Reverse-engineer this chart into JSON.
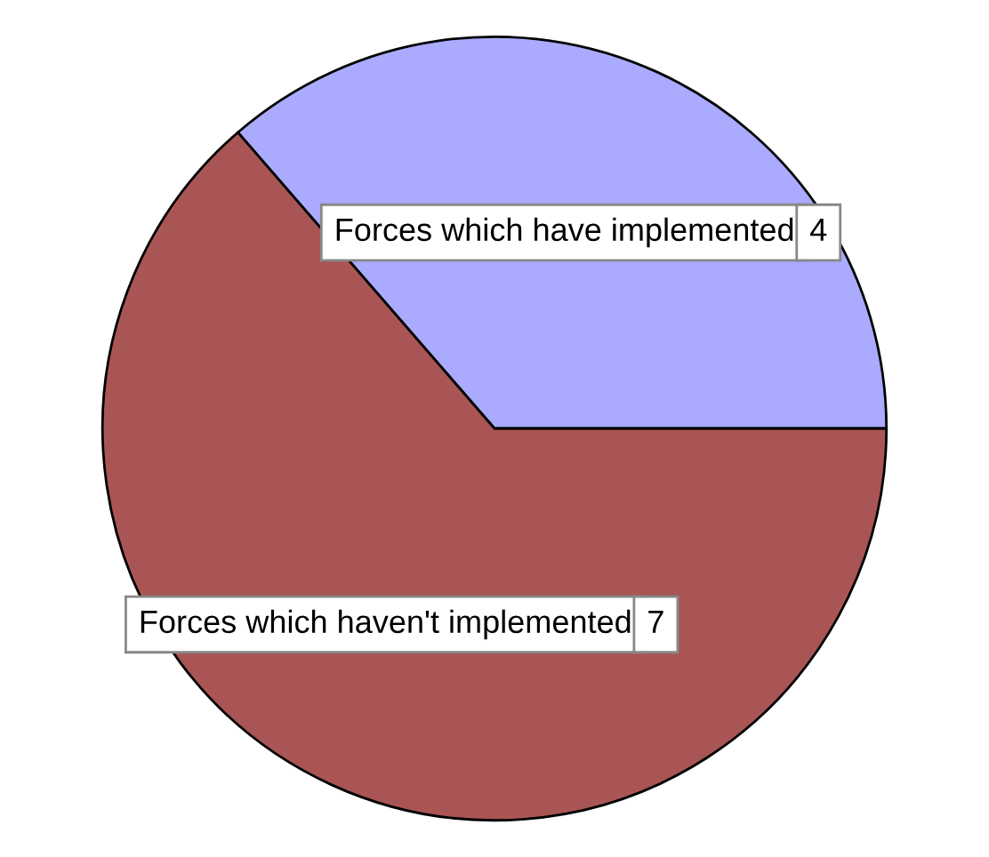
{
  "chart_data": {
    "type": "pie",
    "categories": [
      "Forces which have implemented",
      "Forces which haven't implemented"
    ],
    "values": [
      4,
      7
    ],
    "colors": [
      "#aaaaff",
      "#aa5555"
    ],
    "data_labels": true,
    "legend": false
  }
}
